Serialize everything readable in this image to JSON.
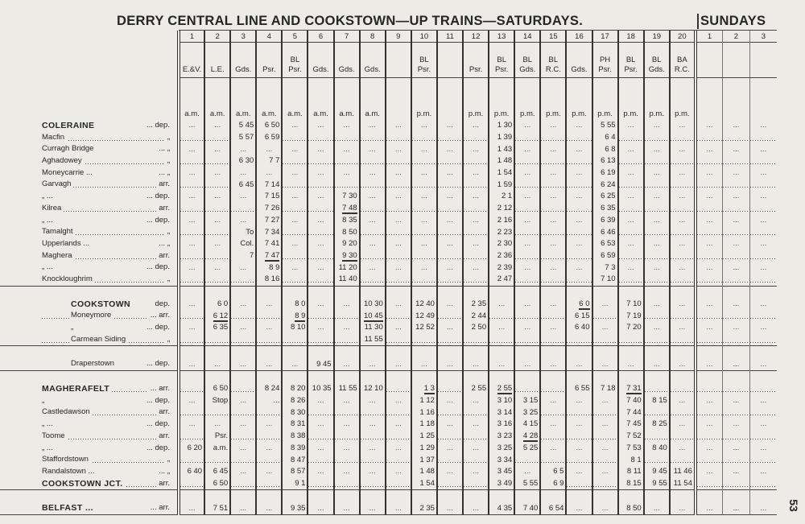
{
  "title": "DERRY CENTRAL LINE AND COOKSTOWN—UP TRAINS—SATURDAYS.",
  "sundays_title": "SUNDAYS",
  "page_number": "53",
  "blank_mark": "...",
  "columns": [
    {
      "num": "1",
      "t1": "",
      "t2": "E.&V.",
      "period": "a.m."
    },
    {
      "num": "2",
      "t1": "",
      "t2": "L.E.",
      "period": "a.m."
    },
    {
      "num": "3",
      "t1": "",
      "t2": "Gds.",
      "period": "a.m."
    },
    {
      "num": "4",
      "t1": "",
      "t2": "Psr.",
      "period": "a.m."
    },
    {
      "num": "5",
      "t1": "BL",
      "t2": "Psr.",
      "period": "a.m."
    },
    {
      "num": "6",
      "t1": "",
      "t2": "Gds.",
      "period": "a.m."
    },
    {
      "num": "7",
      "t1": "",
      "t2": "Gds.",
      "period": "a.m."
    },
    {
      "num": "8",
      "t1": "",
      "t2": "Gds.",
      "period": "a.m."
    },
    {
      "num": "9",
      "t1": "",
      "t2": "",
      "period": ""
    },
    {
      "num": "10",
      "t1": "BL",
      "t2": "Psr.",
      "period": "p.m."
    },
    {
      "num": "11",
      "t1": "",
      "t2": "",
      "period": ""
    },
    {
      "num": "12",
      "t1": "",
      "t2": "Psr.",
      "period": "p.m."
    },
    {
      "num": "13",
      "t1": "BL",
      "t2": "Psr.",
      "period": "p.m."
    },
    {
      "num": "14",
      "t1": "BL",
      "t2": "Gds.",
      "period": "p.m."
    },
    {
      "num": "15",
      "t1": "BL",
      "t2": "R.C.",
      "period": "p.m."
    },
    {
      "num": "16",
      "t1": "",
      "t2": "Gds.",
      "period": "p.m."
    },
    {
      "num": "17",
      "t1": "PH",
      "t2": "Psr.",
      "period": "p.m."
    },
    {
      "num": "18",
      "t1": "BL",
      "t2": "Psr.",
      "period": "p.m."
    },
    {
      "num": "19",
      "t1": "BL",
      "t2": "Gds.",
      "period": "p.m."
    },
    {
      "num": "20",
      "t1": "BA",
      "t2": "R.C.",
      "period": "p.m."
    },
    {
      "num": "1",
      "t1": "",
      "t2": "",
      "period": ""
    },
    {
      "num": "2",
      "t1": "",
      "t2": "",
      "period": ""
    },
    {
      "num": "3",
      "t1": "",
      "t2": "",
      "period": ""
    }
  ],
  "sections": [
    {
      "rows": [
        {
          "name": "COLERAINE",
          "big": true,
          "suffix": "... dep.",
          "style": "plain",
          "cells": {
            "3": "5 45",
            "4": "6 50",
            "13": "1 30",
            "17": "5 55"
          }
        },
        {
          "name": "Macfin",
          "suffix": "„",
          "style": "dotted",
          "cells": {
            "3": "5 57",
            "4": "6 59",
            "13": "1 39",
            "17": "6 4"
          }
        },
        {
          "name": "Curragh Bridge",
          "suffix": "... „",
          "style": "plain",
          "cells": {
            "13": "1 43",
            "17": "6 8"
          }
        },
        {
          "name": "Aghadowey",
          "suffix": "„",
          "style": "dotted",
          "cells": {
            "3": "6 30",
            "4": "7 7",
            "13": "1 48",
            "17": "6 13"
          }
        },
        {
          "name": "Moneycarrie ...",
          "suffix": "... „",
          "style": "plain",
          "cells": {
            "13": "1 54",
            "17": "6 19"
          }
        },
        {
          "name": "Garvagh",
          "suffix": "arr.",
          "style": "dotted",
          "cells": {
            "3": "6 45",
            "4": "7 14",
            "13": "1 59",
            "17": "6 24"
          }
        },
        {
          "name": "„ ...",
          "suffix": "... dep.",
          "style": "plain",
          "ditto": true,
          "cells": {
            "4": "7 15",
            "7": "7 30",
            "13": "2 1",
            "17": "6 25"
          }
        },
        {
          "name": "Kilrea",
          "suffix": "arr.",
          "style": "dotted",
          "cells": {
            "4": "7 26",
            "7": "7 48",
            "13": "2 12",
            "17": "6 35"
          },
          "underline": [
            "7"
          ]
        },
        {
          "name": "„ ...",
          "suffix": "... dep.",
          "style": "plain",
          "ditto": true,
          "cells": {
            "4": "7 27",
            "7": "8 35",
            "13": "2 16",
            "17": "6 39"
          }
        },
        {
          "name": "Tamalght",
          "suffix": "„",
          "style": "dotted",
          "cells": {
            "3": "To",
            "4": "7 34",
            "7": "8 50",
            "13": "2 23",
            "17": "6 46"
          }
        },
        {
          "name": "Upperlands ...",
          "suffix": "... „",
          "style": "plain",
          "cells": {
            "3": "Col.",
            "4": "7 41",
            "7": "9 20",
            "13": "2 30",
            "17": "6 53"
          }
        },
        {
          "name": "Maghera",
          "suffix": "arr.",
          "style": "dotted",
          "cells": {
            "3": "7",
            "4": "7 47",
            "7": "9 30",
            "13": "2 36",
            "17": "6 59"
          },
          "underline": [
            "4",
            "7"
          ]
        },
        {
          "name": "„ ...",
          "suffix": "... dep.",
          "style": "plain",
          "ditto": true,
          "cells": {
            "4": "8 9",
            "7": "11 20",
            "13": "2 39",
            "17": "7 3"
          }
        },
        {
          "name": "Knockloughrim",
          "suffix": "„",
          "style": "dotted",
          "cells": {
            "4": "8 16",
            "7": "11 40",
            "13": "2 47",
            "17": "7 10"
          }
        }
      ]
    },
    {
      "rows": [
        {
          "name": "COOKSTOWN",
          "big": true,
          "indent": true,
          "suffix": "dep.",
          "style": "plain",
          "cells": {
            "2": "6 0",
            "5": "8 0",
            "8": "10 30",
            "10": "12 40",
            "12": "2 35",
            "16": "6 0",
            "18": "7 10"
          },
          "underline": [
            "16"
          ]
        },
        {
          "name": "Moneymore",
          "indent": true,
          "suffix": "... arr.",
          "style": "dotted",
          "cells": {
            "2": "6 12",
            "5": "8 9",
            "8": "10 45",
            "10": "12 49",
            "12": "2 44",
            "16": "6 15",
            "18": "7 19"
          },
          "underline": [
            "2",
            "5",
            "8"
          ]
        },
        {
          "name": "„",
          "indent": true,
          "suffix": "... dep.",
          "style": "plain",
          "ditto": true,
          "cells": {
            "2": "6 35",
            "5": "8 10",
            "8": "11 30",
            "10": "12 52",
            "12": "2 50",
            "16": "6 40",
            "18": "7 20"
          }
        },
        {
          "name": "Carmean Siding",
          "indent": true,
          "suffix": "„",
          "style": "dotted",
          "cells": {
            "8": "11 55"
          }
        }
      ]
    },
    {
      "rows": [
        {
          "name": "Draperstown",
          "indent": true,
          "suffix": "... dep.",
          "style": "plain",
          "cells": {
            "6": "9 45"
          }
        }
      ]
    },
    {
      "rows": [
        {
          "name": "MAGHERAFELT",
          "big": true,
          "suffix": "... arr.",
          "style": "dotted",
          "cells": {
            "2": "6 50",
            "4": "8 24",
            "5": "8 20",
            "6": "10 35",
            "7": "11 55",
            "8": "12 10",
            "10": "1 3",
            "12": "2 55",
            "13": "2 55",
            "16": "6 55",
            "17": "7 18",
            "18": "7 31"
          },
          "underline": [
            "10",
            "13",
            "18"
          ]
        },
        {
          "name": "„",
          "suffix": "... dep.",
          "style": "plain",
          "ditto": true,
          "cells": {
            "2": "Stop",
            "4": "...",
            "5": "8 26",
            "10": "1 12",
            "13": "3 10",
            "14": "3 15",
            "18": "7 40",
            "19": "8 15"
          }
        },
        {
          "name": "Castledawson",
          "suffix": "arr.",
          "style": "dotted",
          "cells": {
            "5": "8 30",
            "10": "1 16",
            "13": "3 14",
            "14": "3 25",
            "18": "7 44"
          }
        },
        {
          "name": "„ ...",
          "suffix": "... dep.",
          "style": "plain",
          "ditto": true,
          "cells": {
            "5": "8 31",
            "10": "1 18",
            "13": "3 16",
            "14": "4 15",
            "18": "7 45",
            "19": "8 25"
          }
        },
        {
          "name": "Toome",
          "suffix": "arr.",
          "style": "dotted",
          "cells": {
            "2": "Psr.",
            "5": "8 38",
            "10": "1 25",
            "13": "3 23",
            "14": "4 28",
            "18": "7 52"
          },
          "underline": [
            "14"
          ]
        },
        {
          "name": "„ ...",
          "suffix": "... dep.",
          "style": "plain",
          "ditto": true,
          "cells": {
            "1": "6 20",
            "2": "a.m.",
            "5": "8 39",
            "10": "1 29",
            "13": "3 25",
            "14": "5 25",
            "18": "7 53",
            "19": "8 40"
          }
        },
        {
          "name": "Staffordstown",
          "suffix": "„",
          "style": "dotted",
          "cells": {
            "5": "8 47",
            "10": "1 37",
            "13": "3 34",
            "18": "8 1"
          }
        },
        {
          "name": "Randalstown ...",
          "suffix": "... „",
          "style": "plain",
          "cells": {
            "1": "6 40",
            "2": "6 45",
            "5": "8 57",
            "10": "1 48",
            "13": "3 45",
            "15": "6 5",
            "18": "8 11",
            "19": "9 45",
            "20": "11 46"
          }
        },
        {
          "name": "COOKSTOWN JCT.",
          "big": true,
          "suffix": "arr.",
          "style": "dotted",
          "cells": {
            "2": "6 50",
            "5": "9 1",
            "10": "1 54",
            "13": "3 49",
            "14": "5 55",
            "15": "6 9",
            "18": "8 15",
            "19": "9 55",
            "20": "11 54"
          }
        }
      ]
    },
    {
      "rows": [
        {
          "name": "BELFAST  ...",
          "big": true,
          "suffix": "... arr.",
          "style": "plain",
          "cells": {
            "2": "7 51",
            "5": "9 35",
            "10": "2 35",
            "13": "4 35",
            "14": "7 40",
            "15": "6 54",
            "18": "8 50"
          }
        }
      ]
    }
  ]
}
